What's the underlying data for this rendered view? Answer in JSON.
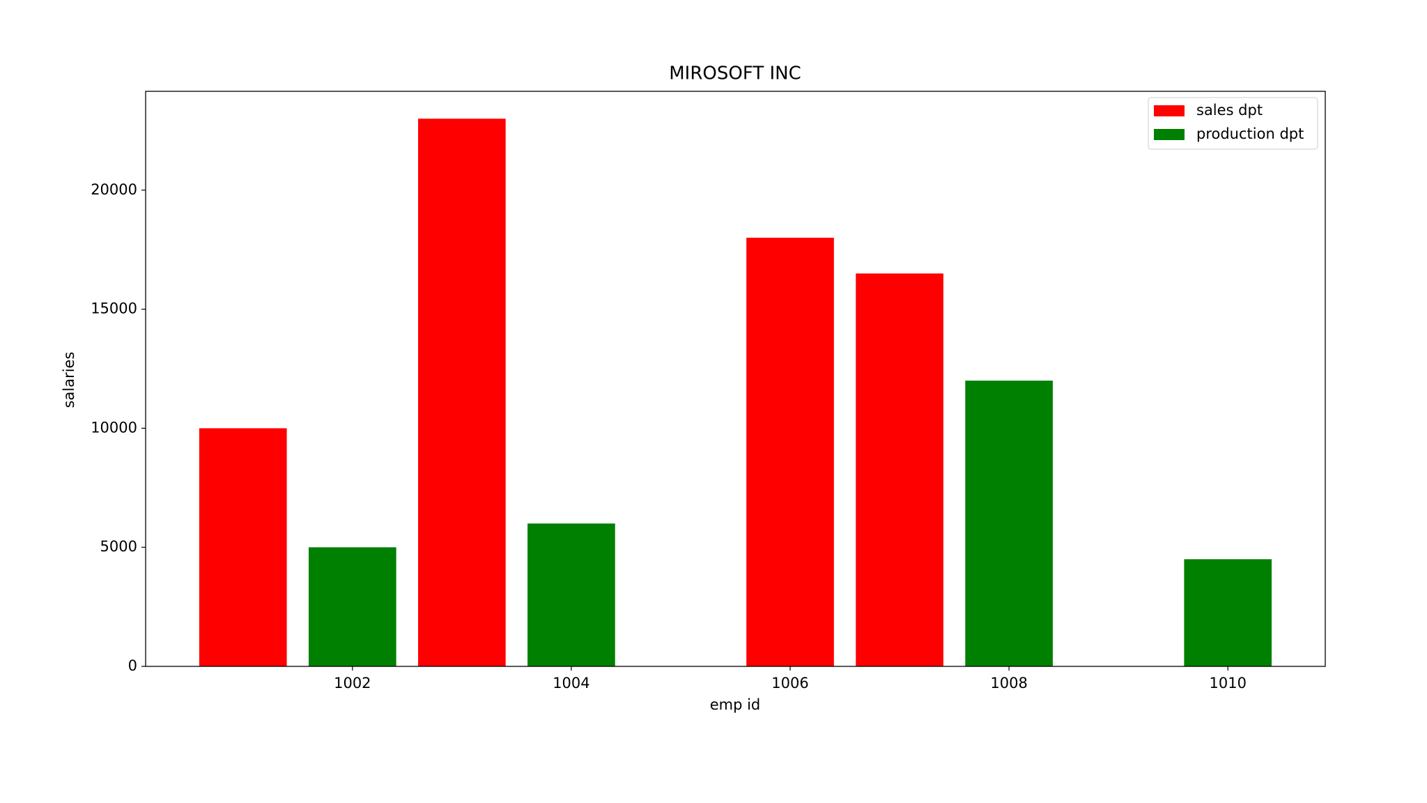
{
  "chart_data": {
    "type": "bar",
    "title": "MIROSOFT INC",
    "x_label": "emp id",
    "y_label": "salaries",
    "series": [
      {
        "name": "sales dpt",
        "color": "#ff0000",
        "x": [
          1001,
          1003,
          1006,
          1007
        ],
        "values": [
          10000,
          23000,
          18000,
          16500
        ]
      },
      {
        "name": "production dpt",
        "color": "#008000",
        "x": [
          1002,
          1004,
          1008,
          1010
        ],
        "values": [
          5000,
          6000,
          12000,
          4500
        ]
      }
    ],
    "xlim": [
      1000.11,
      1010.89
    ],
    "xticks": [
      1002,
      1004,
      1006,
      1008,
      1010
    ],
    "ylim": [
      0,
      24150
    ],
    "yticks": [
      0,
      5000,
      10000,
      15000,
      20000
    ],
    "grid": false,
    "legend": "upper right"
  }
}
